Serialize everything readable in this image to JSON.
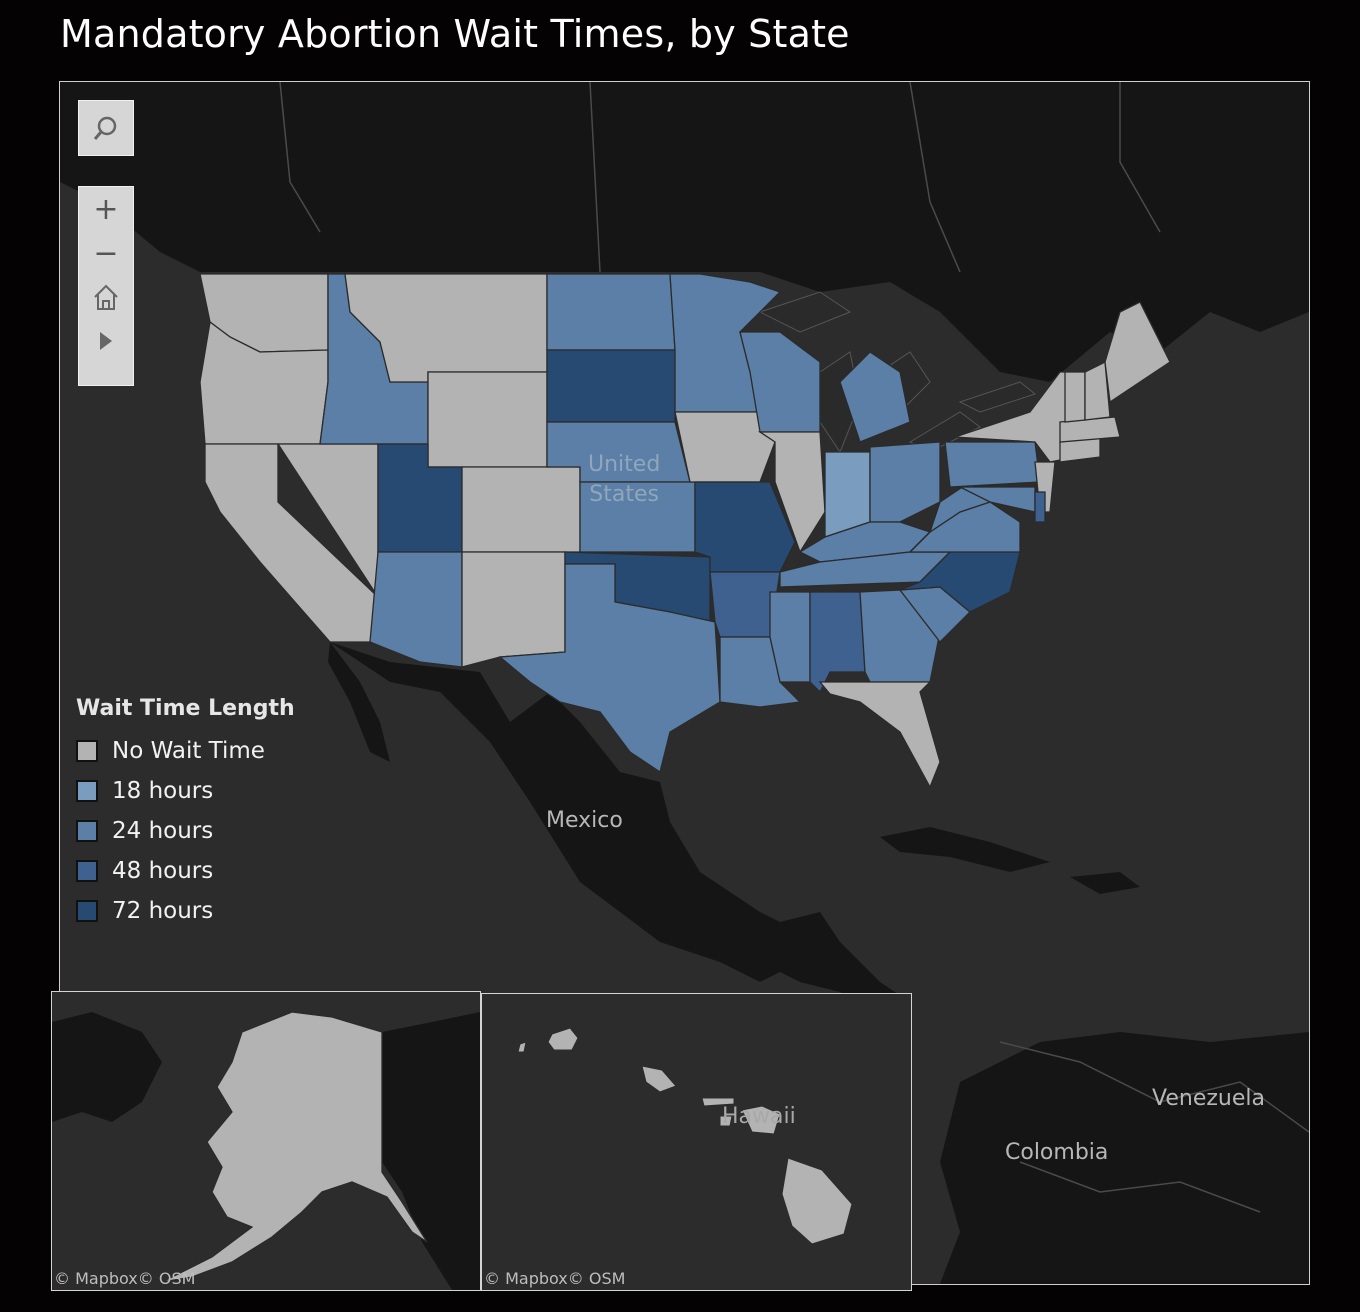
{
  "title": "Mandatory Abortion Wait Times, by State",
  "colors": {
    "no_wait": "#b3b3b3",
    "h18": "#7a9cbf",
    "h24": "#5b7fa6",
    "h48": "#3f6190",
    "h72": "#274a72",
    "ocean": "#2c2c2c",
    "land_dark": "#151515"
  },
  "toolbar": {
    "search_icon": "search-icon",
    "zoom_in": "+",
    "zoom_out": "−",
    "home_icon": "home-icon",
    "play_icon": "play-icon"
  },
  "map_labels": {
    "us_line1": "United",
    "us_line2": "States",
    "mexico": "Mexico",
    "venezuela": "Venezuela",
    "colombia": "Colombia",
    "hawaii": "Hawaii"
  },
  "legend": {
    "title": "Wait Time Length",
    "items": [
      {
        "label": "No Wait Time",
        "color": "#b3b3b3"
      },
      {
        "label": "18 hours",
        "color": "#7a9cbf"
      },
      {
        "label": "24 hours",
        "color": "#5b7fa6"
      },
      {
        "label": "48 hours",
        "color": "#3f6190"
      },
      {
        "label": "72 hours",
        "color": "#274a72"
      }
    ]
  },
  "attribution": {
    "alaska": "© Mapbox© OSM",
    "hawaii": "© Mapbox© OSM"
  }
}
